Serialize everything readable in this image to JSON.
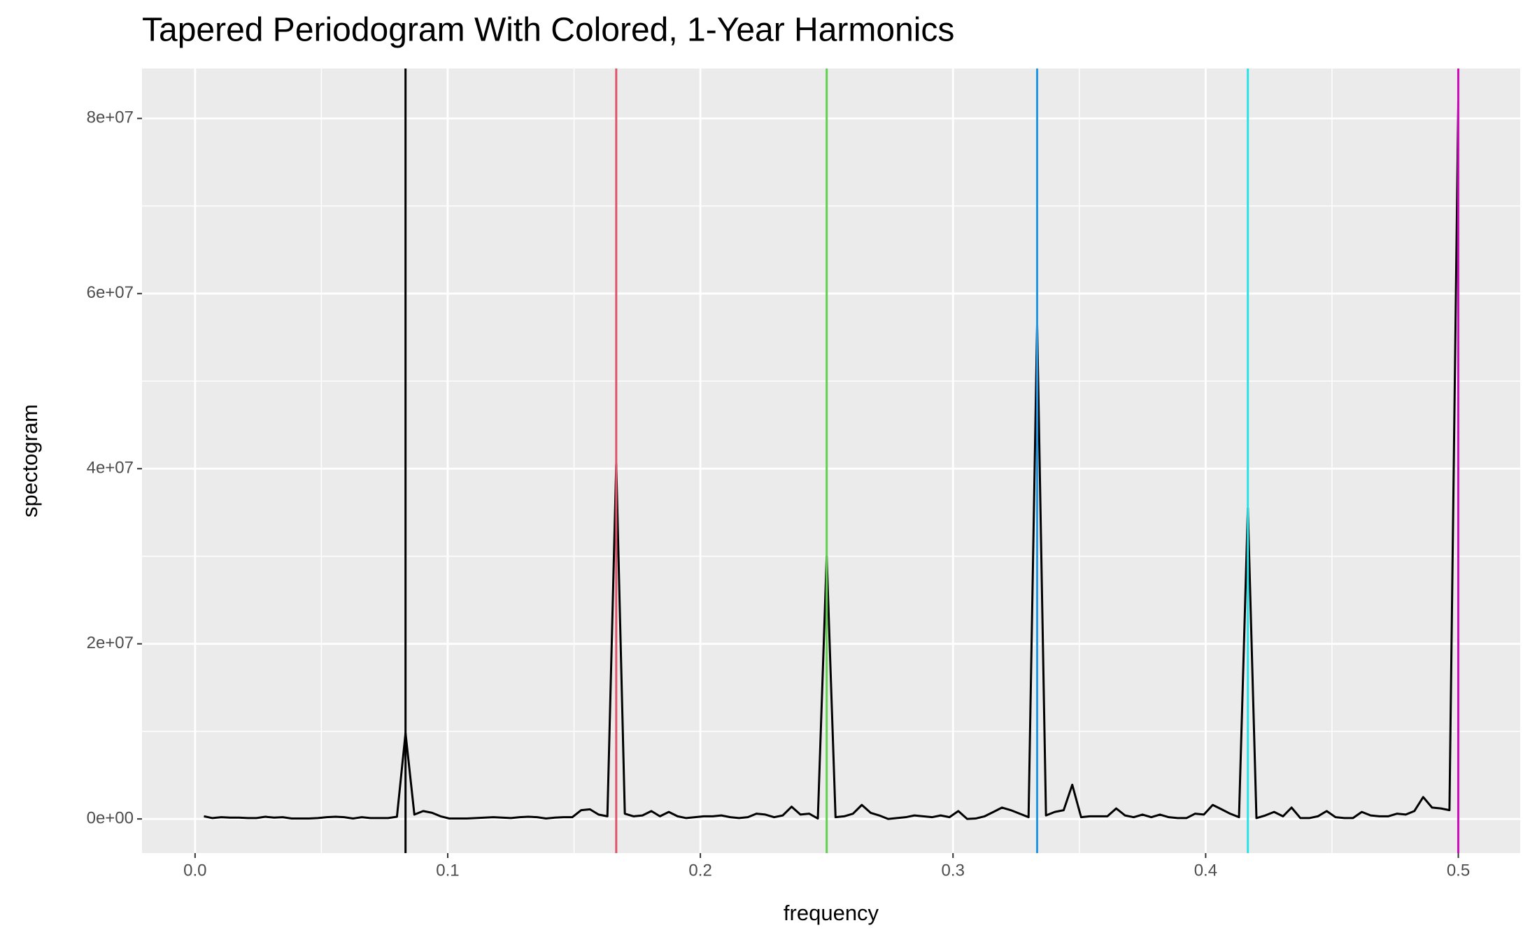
{
  "chart_data": {
    "type": "line",
    "title": "Tapered Periodogram With Colored, 1-Year Harmonics",
    "x_label": "frequency",
    "y_label": "spectogram",
    "xlim": [
      -0.021,
      0.5245
    ],
    "ylim": [
      -3900000,
      85700000
    ],
    "xticks": [
      {
        "value": 0,
        "label": "0.0"
      },
      0.1,
      0.2,
      0.3,
      0.4,
      0.5
    ],
    "yticks": [
      {
        "value": 0,
        "label": "0e+00"
      },
      {
        "value": 20000000,
        "label": "2e+07"
      },
      {
        "value": 40000000,
        "label": "4e+07"
      },
      {
        "value": 60000000,
        "label": "6e+07"
      },
      {
        "value": 80000000,
        "label": "8e+07"
      }
    ],
    "xminor": [
      0.05,
      0.15,
      0.25,
      0.35,
      0.45
    ],
    "yminor": [
      10000000,
      30000000,
      50000000,
      70000000
    ],
    "grid": true,
    "vlines": [
      {
        "x": 0.0833,
        "color": "#000000"
      },
      {
        "x": 0.1667,
        "color": "#DF536B"
      },
      {
        "x": 0.25,
        "color": "#61D04F"
      },
      {
        "x": 0.3333,
        "color": "#2297E6"
      },
      {
        "x": 0.4167,
        "color": "#28E2E5"
      },
      {
        "x": 0.5,
        "color": "#CD0BBC"
      }
    ],
    "series": [
      {
        "color": "#000000",
        "x": [
          0.0035,
          0.0069,
          0.0104,
          0.0139,
          0.0174,
          0.0208,
          0.0243,
          0.0278,
          0.0313,
          0.0347,
          0.0382,
          0.0417,
          0.0451,
          0.0486,
          0.0521,
          0.0556,
          0.059,
          0.0625,
          0.066,
          0.0694,
          0.0729,
          0.0764,
          0.0799,
          0.0833,
          0.0868,
          0.0903,
          0.0938,
          0.0972,
          0.1007,
          0.1042,
          0.1076,
          0.1111,
          0.1146,
          0.1181,
          0.1215,
          0.125,
          0.1285,
          0.1319,
          0.1354,
          0.1389,
          0.1424,
          0.1458,
          0.1493,
          0.1528,
          0.1563,
          0.1597,
          0.1632,
          0.1667,
          0.1701,
          0.1736,
          0.1771,
          0.1806,
          0.184,
          0.1875,
          0.191,
          0.1944,
          0.1979,
          0.2014,
          0.2049,
          0.2083,
          0.2118,
          0.2153,
          0.2188,
          0.2222,
          0.2257,
          0.2292,
          0.2326,
          0.2361,
          0.2396,
          0.2431,
          0.2465,
          0.25,
          0.2535,
          0.2569,
          0.2604,
          0.2639,
          0.2674,
          0.2708,
          0.2743,
          0.2778,
          0.2813,
          0.2847,
          0.2882,
          0.2917,
          0.2951,
          0.2986,
          0.3021,
          0.3056,
          0.309,
          0.3125,
          0.316,
          0.3194,
          0.3229,
          0.3264,
          0.3299,
          0.3333,
          0.3368,
          0.3403,
          0.3438,
          0.3472,
          0.3507,
          0.3542,
          0.3576,
          0.3611,
          0.3646,
          0.3681,
          0.3715,
          0.375,
          0.3785,
          0.3819,
          0.3854,
          0.3889,
          0.3924,
          0.3958,
          0.3993,
          0.4028,
          0.4063,
          0.4097,
          0.4132,
          0.4167,
          0.4201,
          0.4236,
          0.4271,
          0.4306,
          0.434,
          0.4375,
          0.441,
          0.4444,
          0.4479,
          0.4514,
          0.4549,
          0.4583,
          0.4618,
          0.4653,
          0.4688,
          0.4722,
          0.4757,
          0.4792,
          0.4826,
          0.4861,
          0.4896,
          0.4931,
          0.4965,
          0.5
        ],
        "values": [
          300000,
          100000,
          200000,
          150000,
          150000,
          100000,
          100000,
          250000,
          150000,
          200000,
          50000,
          50000,
          50000,
          100000,
          200000,
          250000,
          200000,
          50000,
          200000,
          100000,
          100000,
          100000,
          250000,
          9800000,
          500000,
          900000,
          700000,
          300000,
          50000,
          50000,
          50000,
          100000,
          150000,
          200000,
          150000,
          100000,
          200000,
          250000,
          200000,
          50000,
          150000,
          200000,
          200000,
          1000000,
          1100000,
          500000,
          300000,
          40500000,
          600000,
          300000,
          400000,
          900000,
          300000,
          800000,
          300000,
          100000,
          200000,
          300000,
          300000,
          400000,
          200000,
          100000,
          200000,
          600000,
          500000,
          200000,
          400000,
          1400000,
          500000,
          600000,
          50000,
          30000000,
          200000,
          300000,
          600000,
          1600000,
          700000,
          400000,
          0,
          100000,
          200000,
          400000,
          300000,
          200000,
          400000,
          200000,
          900000,
          0,
          50000,
          300000,
          800000,
          1300000,
          1000000,
          600000,
          200000,
          56500000,
          400000,
          800000,
          1000000,
          3900000,
          200000,
          300000,
          300000,
          300000,
          1200000,
          400000,
          200000,
          500000,
          200000,
          500000,
          200000,
          100000,
          100000,
          600000,
          500000,
          1600000,
          1100000,
          600000,
          200000,
          35500000,
          100000,
          400000,
          800000,
          300000,
          1300000,
          100000,
          100000,
          300000,
          900000,
          200000,
          100000,
          100000,
          800000,
          400000,
          300000,
          300000,
          600000,
          500000,
          900000,
          2500000,
          1300000,
          1200000,
          1000000,
          82000000
        ]
      }
    ]
  }
}
